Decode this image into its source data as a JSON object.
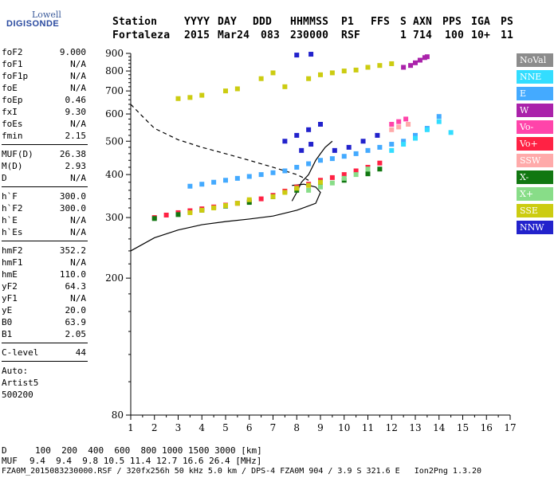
{
  "logo": {
    "line1": "Lowell",
    "line2": "DIGISONDE"
  },
  "header": {
    "labels": [
      "Station",
      "YYYY",
      "DAY",
      "DDD",
      "HHMMSS",
      "P1",
      "FFS",
      "S",
      "AXN",
      "PPS",
      "IGA",
      "PS"
    ],
    "values": [
      "Fortaleza",
      "2015",
      "Mar24",
      "083",
      "230000",
      "RSF",
      "1",
      "714",
      "100",
      "10+",
      "11"
    ]
  },
  "params_group1": [
    {
      "k": "foF2",
      "v": "9.000"
    },
    {
      "k": "foF1",
      "v": "N/A"
    },
    {
      "k": "foF1p",
      "v": "N/A"
    },
    {
      "k": "foE",
      "v": "N/A"
    },
    {
      "k": "foEp",
      "v": "0.46"
    },
    {
      "k": "fxI",
      "v": "9.30"
    },
    {
      "k": "foEs",
      "v": "N/A"
    },
    {
      "k": "fmin",
      "v": "2.15"
    }
  ],
  "params_group2": [
    {
      "k": "MUF(D)",
      "v": "26.38"
    },
    {
      "k": "M(D)",
      "v": "2.93"
    },
    {
      "k": "D",
      "v": "N/A"
    }
  ],
  "params_group3": [
    {
      "k": "h`F",
      "v": "300.0"
    },
    {
      "k": "h`F2",
      "v": "300.0"
    },
    {
      "k": "h`E",
      "v": "N/A"
    },
    {
      "k": "h`Es",
      "v": "N/A"
    }
  ],
  "params_group4": [
    {
      "k": "hmF2",
      "v": "352.2"
    },
    {
      "k": "hmF1",
      "v": "N/A"
    },
    {
      "k": "hmE",
      "v": "110.0"
    },
    {
      "k": "yF2",
      "v": "64.3"
    },
    {
      "k": "yF1",
      "v": "N/A"
    },
    {
      "k": "yE",
      "v": "20.0"
    },
    {
      "k": "B0",
      "v": "63.9"
    },
    {
      "k": "B1",
      "v": "2.05"
    }
  ],
  "clevel": {
    "k": "C-level",
    "v": "44"
  },
  "auto": {
    "line1": "Auto:",
    "line2": "Artist5",
    "line3": "500200"
  },
  "legend": [
    {
      "label": "NoVal",
      "color": "#8c8c8c"
    },
    {
      "label": "NNE",
      "color": "#33ddff"
    },
    {
      "label": "E",
      "color": "#44aaff"
    },
    {
      "label": "W",
      "color": "#aa22aa"
    },
    {
      "label": "Vo-",
      "color": "#ff44aa"
    },
    {
      "label": "Vo+",
      "color": "#ff2244"
    },
    {
      "label": "SSW",
      "color": "#ffaaaa"
    },
    {
      "label": "X-",
      "color": "#117711"
    },
    {
      "label": "X+",
      "color": "#88dd88"
    },
    {
      "label": "SSE",
      "color": "#cccc11"
    },
    {
      "label": "NNW",
      "color": "#2222cc"
    }
  ],
  "footer": {
    "row1_label": "D",
    "row1_values": "100  200  400  600  800 1000 1500 3000 [km]",
    "row2_label": "MUF",
    "row2_values": "9.4  9.4  9.8 10.5 11.4 12.7 16.6 26.4 [MHz]",
    "row3": "FZA0M_2015083230000.RSF / 320fx256h 50 kHz 5.0 km / DPS-4 FZA0M 904 / 3.9 S 321.6 E   Ion2Png 1.3.20"
  },
  "chart_data": {
    "type": "scatter",
    "title": "",
    "xlabel": "",
    "ylabel": "",
    "xlim": [
      1,
      17
    ],
    "ylim": [
      80,
      900
    ],
    "x_ticks": [
      1,
      2,
      3,
      4,
      5,
      6,
      7,
      8,
      9,
      10,
      11,
      12,
      13,
      14,
      15,
      16,
      17
    ],
    "y_ticks": [
      80,
      200,
      300,
      400,
      500,
      600,
      700,
      800,
      900
    ],
    "grid": false,
    "legend_placement": "right",
    "series": [
      {
        "name": "Vo+",
        "color": "#ff2244",
        "x": [
          2.0,
          2.5,
          3.0,
          3.5,
          4.0,
          4.5,
          5.0,
          5.5,
          6.0,
          6.5,
          7.0,
          7.5,
          8.0,
          8.5,
          9.0,
          9.5,
          10.0,
          10.5,
          11.0,
          11.5
        ],
        "y": [
          300,
          305,
          310,
          314,
          318,
          322,
          326,
          330,
          334,
          340,
          348,
          358,
          368,
          375,
          385,
          392,
          400,
          410,
          420,
          432
        ]
      },
      {
        "name": "X-",
        "color": "#117711",
        "x": [
          2.0,
          3.0,
          4.0,
          5.0,
          6.0,
          7.0,
          8.0,
          9.0,
          10.0,
          11.0,
          11.5
        ],
        "y": [
          298,
          306,
          315,
          324,
          332,
          345,
          360,
          372,
          385,
          402,
          415
        ]
      },
      {
        "name": "X+",
        "color": "#88dd88",
        "x": [
          8.5,
          9.0,
          9.5,
          10.0,
          10.5,
          11.0
        ],
        "y": [
          360,
          368,
          378,
          390,
          400,
          415
        ]
      },
      {
        "name": "SSE",
        "color": "#cccc11",
        "x": [
          3.5,
          4.0,
          4.5,
          5.0,
          5.5,
          6.0,
          7.0,
          7.5,
          8.0,
          8.5,
          9.0,
          6.5,
          7.0,
          7.5,
          3.0,
          3.5,
          4.0,
          5.0,
          5.5,
          8.5,
          9.0,
          9.5,
          10.0,
          10.5,
          11.0,
          11.5,
          12.0
        ],
        "y": [
          310,
          315,
          320,
          325,
          330,
          338,
          345,
          355,
          365,
          372,
          380,
          760,
          790,
          720,
          665,
          670,
          680,
          700,
          710,
          760,
          780,
          790,
          800,
          805,
          820,
          830,
          840
        ]
      },
      {
        "name": "E",
        "color": "#44aaff",
        "x": [
          3.5,
          4.0,
          4.5,
          5.0,
          5.5,
          6.0,
          6.5,
          7.0,
          7.5,
          8.0,
          8.5,
          9.0,
          9.5,
          10.0,
          10.5,
          11.0,
          11.5,
          12.0,
          12.5,
          13.0,
          13.5,
          14.0
        ],
        "y": [
          370,
          375,
          380,
          385,
          390,
          395,
          400,
          405,
          410,
          420,
          430,
          440,
          445,
          452,
          460,
          470,
          480,
          490,
          500,
          520,
          545,
          590
        ]
      },
      {
        "name": "NNE",
        "color": "#33ddff",
        "x": [
          12.0,
          12.5,
          13.0,
          13.5,
          14.0,
          14.5
        ],
        "y": [
          470,
          490,
          510,
          540,
          570,
          530
        ]
      },
      {
        "name": "NNW",
        "color": "#2222cc",
        "x": [
          7.5,
          8.0,
          8.5,
          9.0,
          8.2,
          8.6,
          9.6,
          10.2,
          10.8,
          11.4,
          8.0,
          8.6
        ],
        "y": [
          500,
          520,
          540,
          560,
          470,
          490,
          470,
          480,
          500,
          520,
          890,
          895
        ]
      },
      {
        "name": "W",
        "color": "#aa22aa",
        "x": [
          12.5,
          12.8,
          13.0,
          13.2,
          13.4,
          13.5
        ],
        "y": [
          820,
          830,
          845,
          860,
          875,
          880
        ]
      },
      {
        "name": "Vo-",
        "color": "#ff44aa",
        "x": [
          12.0,
          12.3,
          12.6
        ],
        "y": [
          560,
          570,
          580
        ]
      },
      {
        "name": "SSW",
        "color": "#ffaaaa",
        "x": [
          12.0,
          12.3,
          12.7
        ],
        "y": [
          540,
          550,
          560
        ]
      }
    ],
    "lines": [
      {
        "name": "profile-solid",
        "style": "solid",
        "x": [
          1.0,
          2.0,
          3.0,
          4.0,
          5.0,
          6.0,
          7.0,
          8.0,
          8.8,
          9.0,
          8.8,
          8.3,
          7.8
        ],
        "y": [
          240,
          262,
          276,
          286,
          292,
          297,
          303,
          315,
          330,
          355,
          368,
          375,
          372
        ]
      },
      {
        "name": "profile-dashed",
        "style": "dashed",
        "x": [
          1.0,
          1.5,
          2.0,
          3.0,
          4.0,
          5.0,
          6.0,
          7.0,
          8.0,
          8.5
        ],
        "y": [
          640,
          590,
          545,
          505,
          480,
          460,
          440,
          420,
          400,
          385
        ]
      },
      {
        "name": "trace-solid",
        "style": "solid",
        "x": [
          7.8,
          8.0,
          8.2,
          8.5,
          8.8,
          9.0,
          9.2,
          9.5
        ],
        "y": [
          335,
          355,
          380,
          400,
          440,
          460,
          480,
          500
        ]
      }
    ]
  }
}
